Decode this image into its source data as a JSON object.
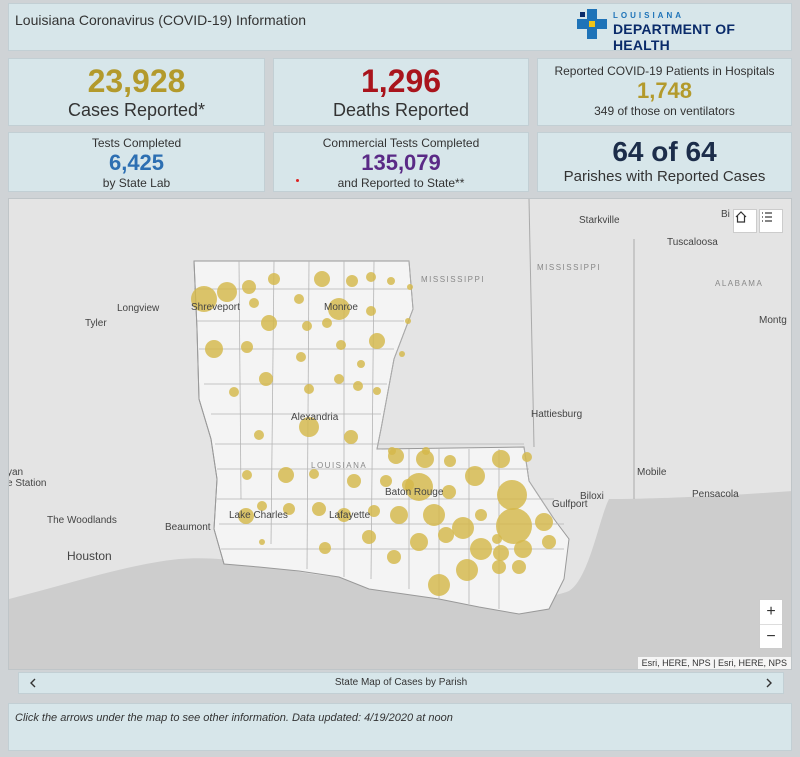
{
  "header": {
    "title": "Louisiana Coronavirus (COVID-19) Information"
  },
  "logo": {
    "small": "LOUISIANA",
    "big": "DEPARTMENT OF HEALTH",
    "accent": "#1e73b8"
  },
  "cards": {
    "cases": {
      "value": "23,928",
      "label": "Cases Reported*",
      "color": "#b39a2c"
    },
    "deaths": {
      "value": "1,296",
      "label": "Deaths Reported",
      "color": "#a9141c"
    },
    "hospital": {
      "title": "Reported COVID-19 Patients in Hospitals",
      "value": "1,748",
      "sub": "349 of those on ventilators",
      "color": "#b39a2c"
    },
    "tests": {
      "title": "Tests Completed",
      "value": "6,425",
      "sub": "by State Lab",
      "color": "#2d6fb2"
    },
    "commercial": {
      "title": "Commercial Tests Completed",
      "value": "135,079",
      "sub": "and Reported to State**",
      "color": "#5a2a86"
    },
    "parishes": {
      "value": "64 of 64",
      "label": "Parishes with Reported Cases",
      "color": "#1c2d4a"
    }
  },
  "map": {
    "labels": {
      "shreveport": "Shreveport",
      "monroe": "Monroe",
      "alexandria": "Alexandria",
      "baton_rouge": "Baton Rouge",
      "lafayette": "Lafayette",
      "lake_charles": "Lake Charles",
      "longview": "Longview",
      "tyler": "Tyler",
      "beaumont": "Beaumont",
      "the_woodlands": "The Woodlands",
      "houston": "Houston",
      "station": "e Station",
      "yan": "yan",
      "starkville": "Starkville",
      "tuscaloosa": "Tuscaloosa",
      "montg": "Montg",
      "hattiesburg": "Hattiesburg",
      "mobile": "Mobile",
      "gulfport": "Gulfport",
      "biloxi": "Biloxi",
      "pensacola": "Pensacola",
      "bi": "Bi"
    },
    "state_labels": {
      "mississippi_river": "MISSISSIPPI",
      "mississippi_state": "MISSISSIPPI",
      "alabama": "ALABAMA",
      "louisiana": "LOUISIANA"
    },
    "zoom_in": "+",
    "zoom_out": "−",
    "attribution": "Esri, HERE, NPS | Esri, HERE, NPS",
    "bubble_color": "#d4b84a"
  },
  "nav": {
    "label": "State Map of Cases by Parish"
  },
  "footer": {
    "note": "Click the arrows under the map to see other information. Data updated: 4/19/2020 at noon"
  }
}
